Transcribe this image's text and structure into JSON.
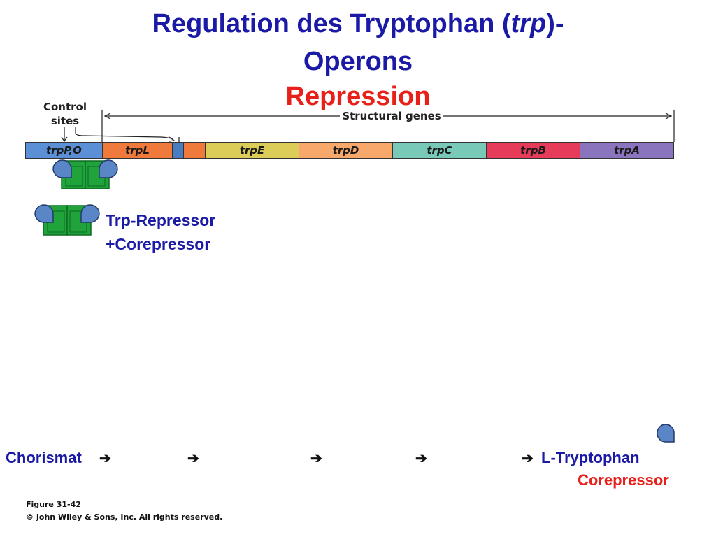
{
  "title": {
    "line1_prefix": "Regulation des Tryptophan (",
    "line1_italic": "trp",
    "line1_suffix": ")-",
    "line2": "Operons",
    "line3": "Repression"
  },
  "diagram": {
    "control_sites_label": [
      "Control",
      "sites"
    ],
    "structural_genes_label": "Structural genes",
    "genes": [
      {
        "name": "trpP,O",
        "color": "#5b8fd6"
      },
      {
        "name": "trpL",
        "color": "#ef7a3c"
      },
      {
        "name": "",
        "color": "#4a7cc2"
      },
      {
        "name": "",
        "color": "#ef7a3c"
      },
      {
        "name": "trpE",
        "color": "#dccc58"
      },
      {
        "name": "trpD",
        "color": "#f7a86a"
      },
      {
        "name": "trpC",
        "color": "#79c9b9"
      },
      {
        "name": "trpB",
        "color": "#e63c5a"
      },
      {
        "name": "trpA",
        "color": "#8a74bd"
      }
    ]
  },
  "legend": {
    "line1": "Trp-Repressor",
    "line2": "+Corepressor"
  },
  "pathway": {
    "start": "Chorismat",
    "end": "L-Tryptophan",
    "corepressor_label": "Corepressor",
    "arrow_glyph": "➔"
  },
  "credit": {
    "figure": "Figure 31-42",
    "copyright": "© John Wiley & Sons, Inc. All rights reserved."
  },
  "colors": {
    "title_blue": "#1a1aa6",
    "repression_red": "#e8201a",
    "repressor_green": "#1fa33a",
    "corepressor_blue": "#5a86c8"
  }
}
